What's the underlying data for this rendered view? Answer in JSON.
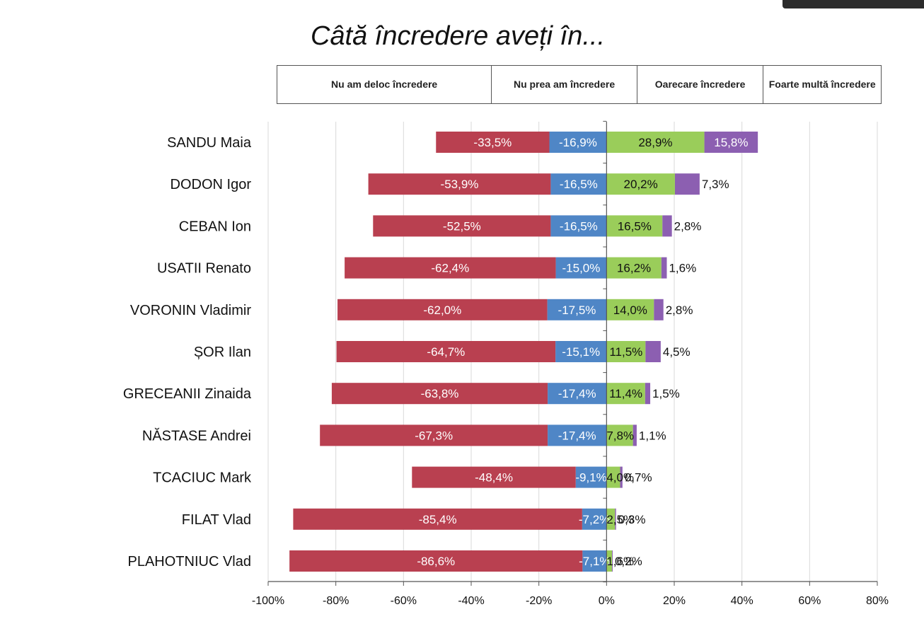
{
  "title": "Câtă încredere aveți în...",
  "legend": [
    {
      "label": "Nu am deloc încredere",
      "color": "#b94050"
    },
    {
      "label": "Nu prea am încredere",
      "color": "#4f86c6"
    },
    {
      "label": "Oarecare încredere",
      "color": "#9acd5a"
    },
    {
      "label": "Foarte multă încredere",
      "color": "#8c5fb1"
    }
  ],
  "chart_data": {
    "type": "bar",
    "orientation": "horizontal",
    "stacked": "diverging",
    "categories": [
      "SANDU Maia",
      "DODON Igor",
      "CEBAN Ion",
      "USATII Renato",
      "VORONIN Vladimir",
      "ȘOR Ilan",
      "GRECEANII Zinaida",
      "NĂSTASE Andrei",
      "TCACIUC Mark",
      "FILAT Vlad",
      "PLAHOTNIUC Vlad"
    ],
    "series": [
      {
        "name": "Nu am deloc încredere",
        "values": [
          -33.5,
          -53.9,
          -52.5,
          -62.4,
          -62.0,
          -64.7,
          -63.8,
          -67.3,
          -48.4,
          -85.4,
          -86.6
        ],
        "labels": [
          "-33,5%",
          "-53,9%",
          "-52,5%",
          "-62,4%",
          "-62,0%",
          "-64,7%",
          "-63,8%",
          "-67,3%",
          "-48,4%",
          "-85,4%",
          "-86,6%"
        ]
      },
      {
        "name": "Nu prea am încredere",
        "values": [
          -16.9,
          -16.5,
          -16.5,
          -15.0,
          -17.5,
          -15.1,
          -17.4,
          -17.4,
          -9.1,
          -7.2,
          -7.1
        ],
        "labels": [
          "-16,9%",
          "-16,5%",
          "-16,5%",
          "-15,0%",
          "-17,5%",
          "-15,1%",
          "-17,4%",
          "-17,4%",
          "-9,1%",
          "-7,2%",
          "-7,1%"
        ]
      },
      {
        "name": "Oarecare încredere",
        "values": [
          28.9,
          20.2,
          16.5,
          16.2,
          14.0,
          11.5,
          11.4,
          7.8,
          4.0,
          2.5,
          1.6
        ],
        "labels": [
          "28,9%",
          "20,2%",
          "16,5%",
          "16,2%",
          "14,0%",
          "11,5%",
          "11,4%",
          "7,8%",
          "4,0%",
          "2,5%",
          "1,6%"
        ]
      },
      {
        "name": "Foarte multă încredere",
        "values": [
          15.8,
          7.3,
          2.8,
          1.6,
          2.8,
          4.5,
          1.5,
          1.1,
          0.7,
          0.3,
          0.2
        ],
        "labels": [
          "15,8%",
          "7,3%",
          "2,8%",
          "1,6%",
          "2,8%",
          "4,5%",
          "1,5%",
          "1,1%",
          "0,7%",
          "0,3%",
          "0,2%"
        ]
      }
    ],
    "xlim": [
      -100,
      80
    ],
    "xticks": [
      "-100%",
      "-80%",
      "-60%",
      "-40%",
      "-20%",
      "0%",
      "20%",
      "40%",
      "60%",
      "80%"
    ],
    "grid": true,
    "legend_position": "top"
  }
}
